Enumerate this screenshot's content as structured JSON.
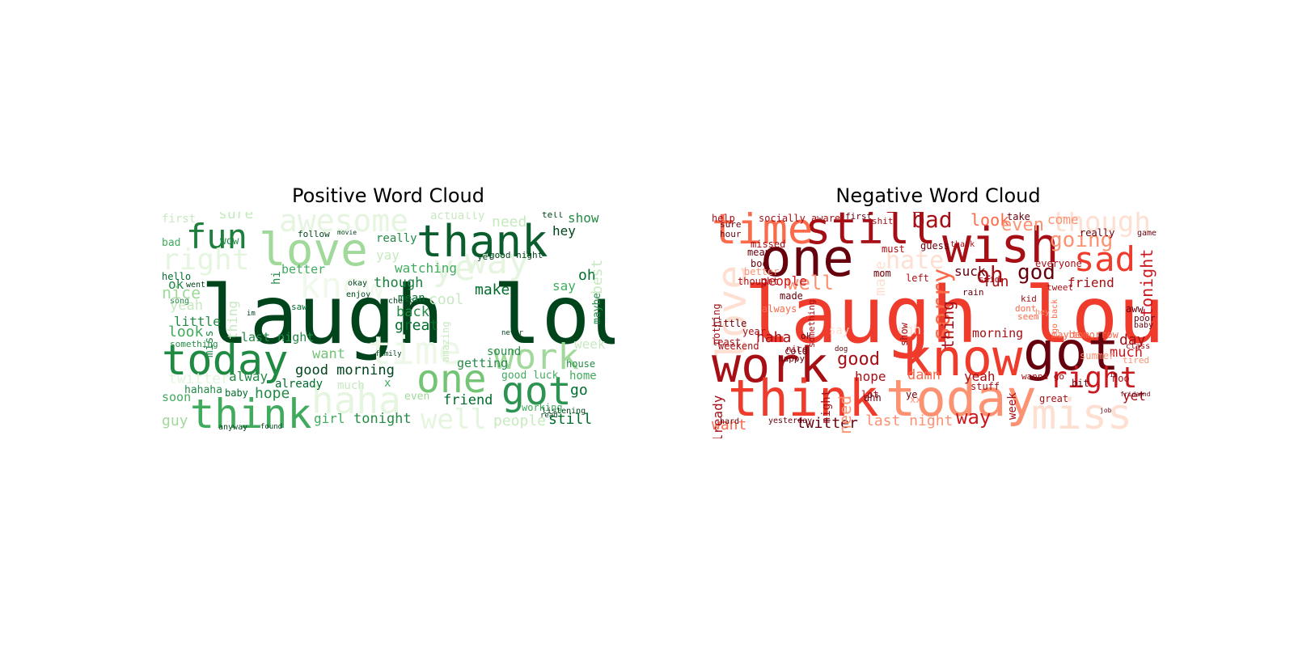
{
  "positive": {
    "title": "Positive Word Cloud",
    "words": [
      {
        "t": "laugh loud",
        "c": "#00441b"
      },
      {
        "t": "thank",
        "c": "#0a5d2c"
      },
      {
        "t": "love",
        "c": "#a1d99b"
      },
      {
        "t": "fun",
        "c": "#1d7f3c"
      },
      {
        "t": "awesome",
        "c": "#e5f5e0"
      },
      {
        "t": "today",
        "c": "#1f8a41"
      },
      {
        "t": "think",
        "c": "#41ab5d"
      },
      {
        "t": "time",
        "c": "#edf8e9"
      },
      {
        "t": "haha",
        "c": "#e5f5e0"
      },
      {
        "t": "one",
        "c": "#74c476"
      },
      {
        "t": "got",
        "c": "#2c9350"
      },
      {
        "t": "work",
        "c": "#a1d99b"
      },
      {
        "t": "well",
        "c": "#e5f5e0"
      },
      {
        "t": "right",
        "c": "#e5f5e0"
      },
      {
        "t": "know",
        "c": "#f0f9ec"
      },
      {
        "t": "way",
        "c": "#e5f5e0"
      },
      {
        "t": "ye",
        "c": "#e5f5e0"
      },
      {
        "t": "sure",
        "c": "#c7e9c0"
      },
      {
        "t": "first",
        "c": "#c7e9c0"
      },
      {
        "t": "need",
        "c": "#c7e9c0"
      },
      {
        "t": "show",
        "c": "#238b45"
      },
      {
        "t": "hey",
        "c": "#00441b"
      },
      {
        "t": "oh",
        "c": "#006d2c"
      },
      {
        "t": "say",
        "c": "#41ab5d"
      },
      {
        "t": "make",
        "c": "#006d2c"
      },
      {
        "t": "though",
        "c": "#1a7f3c"
      },
      {
        "t": "watching",
        "c": "#41ab5d"
      },
      {
        "t": "yay",
        "c": "#c7e9c0"
      },
      {
        "t": "cool",
        "c": "#c7e9c0"
      },
      {
        "t": "back",
        "c": "#238b45"
      },
      {
        "t": "great",
        "c": "#006d2c"
      },
      {
        "t": "last night",
        "c": "#238b45"
      },
      {
        "t": "good morning",
        "c": "#00441b"
      },
      {
        "t": "want",
        "c": "#74c476"
      },
      {
        "t": "alway",
        "c": "#238b45"
      },
      {
        "t": "hope",
        "c": "#238b45"
      },
      {
        "t": "already",
        "c": "#006d2c"
      },
      {
        "t": "friend",
        "c": "#006d2c"
      },
      {
        "t": "girl",
        "c": "#41ab5d"
      },
      {
        "t": "tonight",
        "c": "#238b45"
      },
      {
        "t": "people",
        "c": "#c7e9c0"
      },
      {
        "t": "still",
        "c": "#006d2c"
      },
      {
        "t": "go",
        "c": "#006d2c"
      },
      {
        "t": "home",
        "c": "#41ab5d"
      },
      {
        "t": "house",
        "c": "#238b45"
      },
      {
        "t": "guy",
        "c": "#a1d99b"
      },
      {
        "t": "soon",
        "c": "#41ab5d"
      },
      {
        "t": "hahaha",
        "c": "#238b45"
      },
      {
        "t": "baby",
        "c": "#006d2c"
      },
      {
        "t": "look",
        "c": "#41ab5d"
      },
      {
        "t": "little",
        "c": "#238b45"
      },
      {
        "t": "nice",
        "c": "#a1d99b"
      },
      {
        "t": "ok",
        "c": "#238b45"
      },
      {
        "t": "yeah",
        "c": "#c7e9c0"
      },
      {
        "t": "hello",
        "c": "#006d2c"
      },
      {
        "t": "went",
        "c": "#00441b"
      },
      {
        "t": "wow",
        "c": "#238b45"
      },
      {
        "t": "bad",
        "c": "#41ab5d"
      },
      {
        "t": "really",
        "c": "#238b45"
      },
      {
        "t": "better",
        "c": "#41ab5d"
      },
      {
        "t": "follow",
        "c": "#00441b"
      },
      {
        "t": "movie",
        "c": "#00441b"
      },
      {
        "t": "actually",
        "c": "#c7e9c0"
      },
      {
        "t": "tell",
        "c": "#00441b"
      },
      {
        "t": "good night",
        "c": "#00441b"
      },
      {
        "t": "yet",
        "c": "#00441b"
      },
      {
        "t": "sound",
        "c": "#238b45"
      },
      {
        "t": "getting",
        "c": "#238b45"
      },
      {
        "t": "good luck",
        "c": "#41ab5d"
      },
      {
        "t": "working",
        "c": "#41ab5d"
      },
      {
        "t": "week",
        "c": "#c7e9c0"
      },
      {
        "t": "maybe",
        "c": "#238b45"
      },
      {
        "t": "amazing",
        "c": "#c7e9c0"
      },
      {
        "t": "mean",
        "c": "#006d2c"
      },
      {
        "t": "check",
        "c": "#00441b"
      },
      {
        "t": "okay",
        "c": "#00441b"
      },
      {
        "t": "enjoy",
        "c": "#00441b"
      },
      {
        "t": "saw",
        "c": "#006d2c"
      },
      {
        "t": "miss",
        "c": "#238b45"
      },
      {
        "t": "thing",
        "c": "#c7e9c0"
      },
      {
        "t": "something",
        "c": "#238b45"
      },
      {
        "t": "twitter",
        "c": "#e5f5e0"
      },
      {
        "t": "family",
        "c": "#00441b"
      },
      {
        "t": "x",
        "c": "#41ab5d"
      },
      {
        "t": "even",
        "c": "#a1d99b"
      },
      {
        "t": "anyway",
        "c": "#00441b"
      },
      {
        "t": "found",
        "c": "#00441b"
      },
      {
        "t": "best",
        "c": "#c7e9c0"
      },
      {
        "t": "hi",
        "c": "#238b45"
      },
      {
        "t": "song",
        "c": "#238b45"
      },
      {
        "t": "much",
        "c": "#c7e9c0"
      },
      {
        "t": "im",
        "c": "#00441b"
      },
      {
        "t": "listening",
        "c": "#00441b"
      },
      {
        "t": "read",
        "c": "#00441b"
      },
      {
        "t": "never",
        "c": "#00441b"
      }
    ]
  },
  "negative": {
    "title": "Negative Word Cloud",
    "words": [
      {
        "t": "laugh loud",
        "c": "#ef3b2c"
      },
      {
        "t": "one",
        "c": "#67000d"
      },
      {
        "t": "still",
        "c": "#a50f15"
      },
      {
        "t": "time",
        "c": "#fb6a4a"
      },
      {
        "t": "wish",
        "c": "#a50f15"
      },
      {
        "t": "bad",
        "c": "#a50f15"
      },
      {
        "t": "though",
        "c": "#fee0d2"
      },
      {
        "t": "sad",
        "c": "#ef3b2c"
      },
      {
        "t": "going",
        "c": "#fc9272"
      },
      {
        "t": "tonight",
        "c": "#cb181d"
      },
      {
        "t": "love",
        "c": "#fee0d2"
      },
      {
        "t": "hate",
        "c": "#fee0d2"
      },
      {
        "t": "work",
        "c": "#a50f15"
      },
      {
        "t": "know",
        "c": "#ef3b2c"
      },
      {
        "t": "got",
        "c": "#67000d"
      },
      {
        "t": "think",
        "c": "#ef3b2c"
      },
      {
        "t": "today",
        "c": "#fc9272"
      },
      {
        "t": "miss",
        "c": "#fee0d2"
      },
      {
        "t": "right",
        "c": "#cb181d"
      },
      {
        "t": "sorry",
        "c": "#fb6a4a"
      },
      {
        "t": "god",
        "c": "#67000d"
      },
      {
        "t": "oh",
        "c": "#a50f15"
      },
      {
        "t": "well",
        "c": "#fc9272"
      },
      {
        "t": "people",
        "c": "#cb181d"
      },
      {
        "t": "haha",
        "c": "#a50f15"
      },
      {
        "t": "good",
        "c": "#a50f15"
      },
      {
        "t": "hope",
        "c": "#a50f15"
      },
      {
        "t": "damn",
        "c": "#fb6a4a"
      },
      {
        "t": "yeah",
        "c": "#a50f15"
      },
      {
        "t": "way",
        "c": "#cb181d"
      },
      {
        "t": "twitter",
        "c": "#67000d"
      },
      {
        "t": "last night",
        "c": "#fc9272"
      },
      {
        "t": "want",
        "c": "#fb6a4a"
      },
      {
        "t": "already",
        "c": "#a50f15"
      },
      {
        "t": "need",
        "c": "#fc9272"
      },
      {
        "t": "look",
        "c": "#fb6a4a"
      },
      {
        "t": "even",
        "c": "#fc9272"
      },
      {
        "t": "friend",
        "c": "#a50f15"
      },
      {
        "t": "fun",
        "c": "#a50f15"
      },
      {
        "t": "suck",
        "c": "#67000d"
      },
      {
        "t": "morning",
        "c": "#a50f15"
      },
      {
        "t": "day",
        "c": "#a50f15"
      },
      {
        "t": "much",
        "c": "#cb181d"
      },
      {
        "t": "week",
        "c": "#a50f15"
      },
      {
        "t": "yet",
        "c": "#a50f15"
      },
      {
        "t": "thing",
        "c": "#a50f15"
      },
      {
        "t": "make",
        "c": "#fee0d2"
      },
      {
        "t": "ugh",
        "c": "#fee0d2"
      },
      {
        "t": "say",
        "c": "#fee0d2"
      },
      {
        "t": "left",
        "c": "#a50f15"
      },
      {
        "t": "little",
        "c": "#67000d"
      },
      {
        "t": "least",
        "c": "#a50f15"
      },
      {
        "t": "weekend",
        "c": "#a50f15"
      },
      {
        "t": "year",
        "c": "#a50f15"
      },
      {
        "t": "lot",
        "c": "#a50f15"
      },
      {
        "t": "great",
        "c": "#a50f15"
      },
      {
        "t": "aww",
        "c": "#67000d"
      },
      {
        "t": "tired",
        "c": "#fc9272"
      },
      {
        "t": "poor",
        "c": "#67000d"
      },
      {
        "t": "baby",
        "c": "#67000d"
      },
      {
        "t": "take",
        "c": "#67000d"
      },
      {
        "t": "come",
        "c": "#fc9272"
      },
      {
        "t": "really",
        "c": "#67000d"
      },
      {
        "t": "game",
        "c": "#67000d"
      },
      {
        "t": "everyone",
        "c": "#a50f15"
      },
      {
        "t": "help",
        "c": "#a50f15"
      },
      {
        "t": "socially aware",
        "c": "#a50f15"
      },
      {
        "t": "first",
        "c": "#67000d"
      },
      {
        "t": "sure",
        "c": "#67000d"
      },
      {
        "t": "hour",
        "c": "#67000d"
      },
      {
        "t": "missed",
        "c": "#a50f15"
      },
      {
        "t": "mean",
        "c": "#67000d"
      },
      {
        "t": "boo",
        "c": "#67000d"
      },
      {
        "t": "better",
        "c": "#fc9272"
      },
      {
        "t": "thought",
        "c": "#a50f15"
      },
      {
        "t": "guess",
        "c": "#67000d"
      },
      {
        "t": "thank",
        "c": "#a50f15"
      },
      {
        "t": "must",
        "c": "#a50f15"
      },
      {
        "t": "shit",
        "c": "#a50f15"
      },
      {
        "t": "mom",
        "c": "#67000d"
      },
      {
        "t": "tweet",
        "c": "#a50f15"
      },
      {
        "t": "kid",
        "c": "#a50f15"
      },
      {
        "t": "dont",
        "c": "#fb6a4a"
      },
      {
        "t": "seem",
        "c": "#fb6a4a"
      },
      {
        "t": "said",
        "c": "#a50f15"
      },
      {
        "t": "rain",
        "c": "#67000d"
      },
      {
        "t": "nice",
        "c": "#a50f15"
      },
      {
        "t": "happy",
        "c": "#67000d"
      },
      {
        "t": "ok",
        "c": "#67000d"
      },
      {
        "t": "yesterday",
        "c": "#67000d"
      },
      {
        "t": "ahh",
        "c": "#67000d"
      },
      {
        "t": "xx",
        "c": "#fc9272"
      },
      {
        "t": "stuff",
        "c": "#a50f15"
      },
      {
        "t": "noo",
        "c": "#a50f15"
      },
      {
        "t": "maybe",
        "c": "#fb6a4a"
      },
      {
        "t": "tomorrow",
        "c": "#fb6a4a"
      },
      {
        "t": "wanna go",
        "c": "#a50f15"
      },
      {
        "t": "hey",
        "c": "#fc9272"
      },
      {
        "t": "night",
        "c": "#a50f15"
      },
      {
        "t": "ye",
        "c": "#67000d"
      },
      {
        "t": "cold",
        "c": "#67000d"
      },
      {
        "t": "made",
        "c": "#67000d"
      },
      {
        "t": "always",
        "c": "#fb6a4a"
      },
      {
        "t": "show",
        "c": "#a50f15"
      },
      {
        "t": "nothing",
        "c": "#a50f15"
      },
      {
        "t": "dog",
        "c": "#67000d"
      },
      {
        "t": "hard",
        "c": "#67000d"
      },
      {
        "t": "class",
        "c": "#a50f15"
      },
      {
        "t": "end",
        "c": "#67000d"
      },
      {
        "t": "job",
        "c": "#67000d"
      },
      {
        "t": "friday",
        "c": "#67000d"
      },
      {
        "t": "summer",
        "c": "#fc9272"
      },
      {
        "t": "bit",
        "c": "#67000d"
      },
      {
        "t": "im",
        "c": "#67000d"
      },
      {
        "t": "go back",
        "c": "#fb6a4a"
      },
      {
        "t": "something",
        "c": "#a50f15"
      }
    ]
  }
}
